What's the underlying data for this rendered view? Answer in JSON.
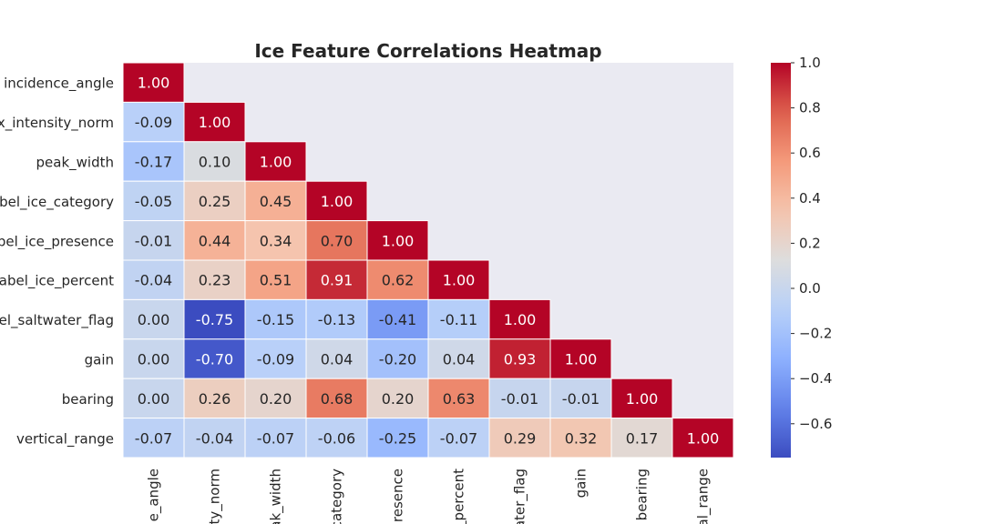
{
  "chart_data": {
    "type": "heatmap",
    "title": "Ice Feature Correlations Heatmap",
    "mask": "upper-triangle",
    "colormap": "coolwarm",
    "x_tick_labels": [
      "e_angle",
      "ty_norm",
      "ak_width",
      "category",
      "resence",
      "_percent",
      "ater_flag",
      "gain",
      "bearing",
      "al_range"
    ],
    "y_tick_labels": [
      "incidence_angle",
      "x_intensity_norm",
      "peak_width",
      "bel_ice_category",
      "bel_ice_presence",
      "abel_ice_percent",
      "el_saltwater_flag",
      "gain",
      "bearing",
      "vertical_range"
    ],
    "values": [
      [
        1.0
      ],
      [
        -0.09,
        1.0
      ],
      [
        -0.17,
        0.1,
        1.0
      ],
      [
        -0.05,
        0.25,
        0.45,
        1.0
      ],
      [
        -0.01,
        0.44,
        0.34,
        0.7,
        1.0
      ],
      [
        -0.04,
        0.23,
        0.51,
        0.91,
        0.62,
        1.0
      ],
      [
        0.0,
        -0.75,
        -0.15,
        -0.13,
        -0.41,
        -0.11,
        1.0
      ],
      [
        0.0,
        -0.7,
        -0.09,
        0.04,
        -0.2,
        0.04,
        0.93,
        1.0
      ],
      [
        0.0,
        0.26,
        0.2,
        0.68,
        0.2,
        0.63,
        -0.01,
        -0.01,
        1.0
      ],
      [
        -0.07,
        -0.04,
        -0.07,
        -0.06,
        -0.25,
        -0.07,
        0.29,
        0.32,
        0.17,
        1.0
      ]
    ],
    "colorbar": {
      "range": [
        -0.75,
        1.0
      ],
      "ticks": [
        1.0,
        0.8,
        0.6,
        0.4,
        0.2,
        0.0,
        -0.2,
        -0.4,
        -0.6
      ],
      "tick_labels": [
        "1.0",
        "0.8",
        "0.6",
        "0.4",
        "0.2",
        "0.0",
        "−0.2",
        "−0.4",
        "−0.6"
      ]
    }
  }
}
